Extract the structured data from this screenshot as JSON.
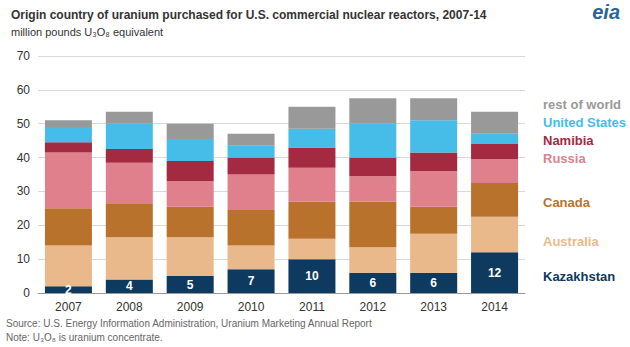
{
  "chart_data": {
    "type": "bar",
    "title": "Origin country of uranium purchased for U.S. commercial nuclear reactors, 2007-14",
    "subtitle": "million pounds U₃O₈ equivalent",
    "logo": "eia",
    "source": "Source: U.S. Energy Information Administration, Uranium Marketing Annual Report",
    "note": "Note: U₃O₈ is uranium concentrate.",
    "categories": [
      "2007",
      "2008",
      "2009",
      "2010",
      "2011",
      "2012",
      "2013",
      "2014"
    ],
    "stacked": true,
    "grid": true,
    "legend": "right",
    "ylim": [
      0,
      70
    ],
    "yticks": [
      0,
      10,
      20,
      30,
      40,
      50,
      60,
      70
    ],
    "series": [
      {
        "name": "Kazakhstan",
        "color": "#0d3a5e",
        "data_labels": true,
        "values": [
          2,
          4,
          5,
          7,
          10,
          6,
          6,
          12
        ]
      },
      {
        "name": "Australia",
        "color": "#e9b98b",
        "values": [
          12,
          12.5,
          11.5,
          7,
          6,
          7.5,
          11.5,
          10.5
        ]
      },
      {
        "name": "Canada",
        "color": "#b9722c",
        "values": [
          11,
          10,
          9,
          10.5,
          11,
          13.5,
          8,
          10
        ]
      },
      {
        "name": "Russia",
        "color": "#e0808d",
        "values": [
          16.5,
          12,
          7.5,
          10.5,
          10,
          7.5,
          10.5,
          7
        ]
      },
      {
        "name": "Namibia",
        "color": "#a32a40",
        "values": [
          3,
          4,
          6,
          5,
          6,
          5.5,
          5.5,
          4.5
        ]
      },
      {
        "name": "United States",
        "color": "#45bde8",
        "values": [
          4.5,
          7.5,
          6.5,
          3.5,
          5.5,
          10,
          9.5,
          3
        ]
      },
      {
        "name": "rest of world",
        "color": "#999999",
        "values": [
          2,
          3.5,
          4.5,
          3.5,
          6.5,
          7.5,
          6.5,
          6.5
        ]
      }
    ]
  }
}
